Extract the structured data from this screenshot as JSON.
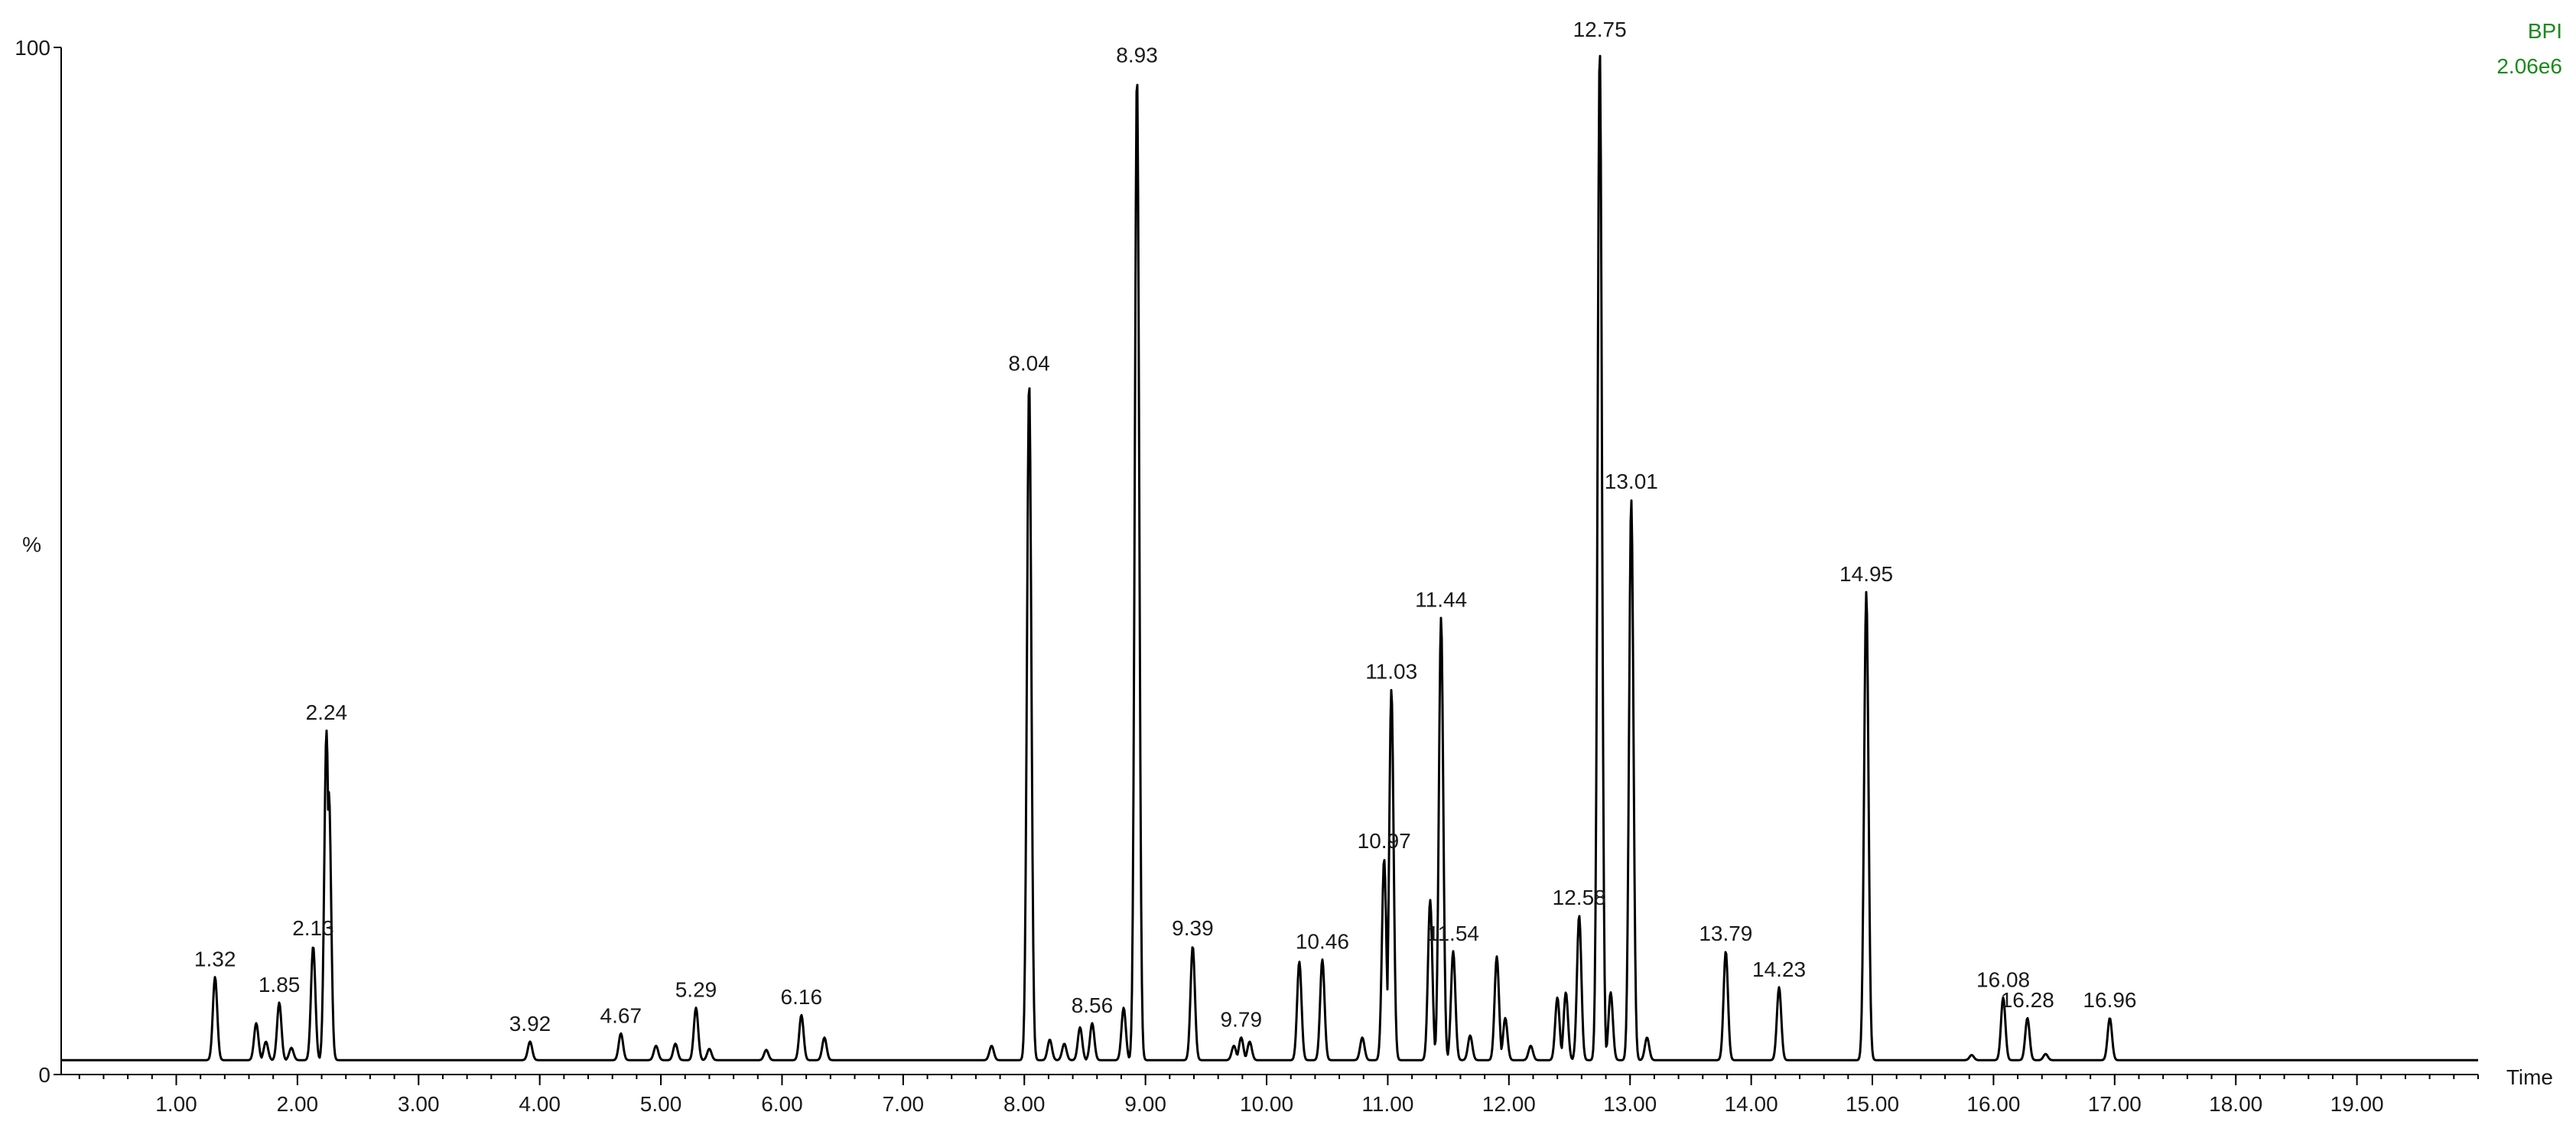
{
  "chart_data": {
    "type": "line",
    "trace_label": "BPI",
    "trace_scale": "2.06e6",
    "trace_color": "#1a8a1a",
    "line_color": "#000000",
    "xlabel": "Time",
    "ylabel": "%",
    "xlim": [
      0.05,
      20.0
    ],
    "ylim": [
      0,
      100
    ],
    "x_ticks": [
      1.0,
      2.0,
      3.0,
      4.0,
      5.0,
      6.0,
      7.0,
      8.0,
      9.0,
      10.0,
      11.0,
      12.0,
      13.0,
      14.0,
      15.0,
      16.0,
      17.0,
      18.0,
      19.0
    ],
    "x_tick_labels": [
      "1.00",
      "2.00",
      "3.00",
      "4.00",
      "5.00",
      "6.00",
      "7.00",
      "8.00",
      "9.00",
      "10.00",
      "11.00",
      "12.00",
      "13.00",
      "14.00",
      "15.00",
      "16.00",
      "17.00",
      "18.00",
      "19.00"
    ],
    "y_tick_labels": [
      "100",
      "%",
      "0"
    ],
    "grid": false,
    "legend": "none",
    "baseline": 1.4,
    "peak_width": 0.018,
    "peaks": [
      {
        "x": 1.32,
        "y": 9.5,
        "label": "1.32"
      },
      {
        "x": 1.66,
        "y": 5.0
      },
      {
        "x": 1.74,
        "y": 3.2
      },
      {
        "x": 1.85,
        "y": 7.0,
        "label": "1.85"
      },
      {
        "x": 1.95,
        "y": 2.6
      },
      {
        "x": 2.13,
        "y": 12.5,
        "label": "2.13"
      },
      {
        "x": 2.24,
        "y": 33.5,
        "label": "2.24"
      },
      {
        "x": 2.26,
        "y": 27.5
      },
      {
        "x": 3.92,
        "y": 3.2,
        "label": "3.92"
      },
      {
        "x": 4.67,
        "y": 4.0,
        "label": "4.67"
      },
      {
        "x": 4.96,
        "y": 2.8
      },
      {
        "x": 5.12,
        "y": 3.0
      },
      {
        "x": 5.29,
        "y": 6.5,
        "label": "5.29"
      },
      {
        "x": 5.4,
        "y": 2.5
      },
      {
        "x": 5.87,
        "y": 2.4
      },
      {
        "x": 6.16,
        "y": 5.8,
        "label": "6.16"
      },
      {
        "x": 6.35,
        "y": 3.6
      },
      {
        "x": 7.73,
        "y": 2.8
      },
      {
        "x": 8.04,
        "y": 67.5,
        "label": "8.04"
      },
      {
        "x": 8.21,
        "y": 3.4
      },
      {
        "x": 8.33,
        "y": 3.0
      },
      {
        "x": 8.46,
        "y": 4.6
      },
      {
        "x": 8.56,
        "y": 5.0,
        "label": "8.56"
      },
      {
        "x": 8.82,
        "y": 6.5
      },
      {
        "x": 8.93,
        "y": 97.5,
        "label": "8.93"
      },
      {
        "x": 9.39,
        "y": 12.5,
        "label": "9.39"
      },
      {
        "x": 9.73,
        "y": 2.8
      },
      {
        "x": 9.79,
        "y": 3.6,
        "label": "9.79"
      },
      {
        "x": 9.86,
        "y": 3.2
      },
      {
        "x": 10.27,
        "y": 11.0
      },
      {
        "x": 10.46,
        "y": 11.2,
        "label": "10.46"
      },
      {
        "x": 10.79,
        "y": 3.6
      },
      {
        "x": 10.97,
        "y": 21.0,
        "label": "10.97"
      },
      {
        "x": 11.03,
        "y": 37.5,
        "label": "11.03"
      },
      {
        "x": 11.35,
        "y": 17.0
      },
      {
        "x": 11.44,
        "y": 44.5,
        "label": "11.44"
      },
      {
        "x": 11.54,
        "y": 12.0,
        "label": "11.54"
      },
      {
        "x": 11.68,
        "y": 3.8
      },
      {
        "x": 11.9,
        "y": 11.5
      },
      {
        "x": 11.97,
        "y": 5.5
      },
      {
        "x": 12.18,
        "y": 2.8
      },
      {
        "x": 12.4,
        "y": 7.5
      },
      {
        "x": 12.47,
        "y": 8.0
      },
      {
        "x": 12.58,
        "y": 15.5,
        "label": "12.58"
      },
      {
        "x": 12.75,
        "y": 100.0,
        "label": "12.75"
      },
      {
        "x": 12.84,
        "y": 8.0
      },
      {
        "x": 13.01,
        "y": 56.0,
        "label": "13.01"
      },
      {
        "x": 13.14,
        "y": 3.6
      },
      {
        "x": 13.79,
        "y": 12.0,
        "label": "13.79"
      },
      {
        "x": 14.23,
        "y": 8.5,
        "label": "14.23"
      },
      {
        "x": 14.95,
        "y": 47.0,
        "label": "14.95"
      },
      {
        "x": 15.82,
        "y": 1.9
      },
      {
        "x": 16.08,
        "y": 7.5,
        "label": "16.08"
      },
      {
        "x": 16.28,
        "y": 5.5,
        "label": "16.28"
      },
      {
        "x": 16.43,
        "y": 2.0
      },
      {
        "x": 16.96,
        "y": 5.5,
        "label": "16.96"
      }
    ]
  }
}
